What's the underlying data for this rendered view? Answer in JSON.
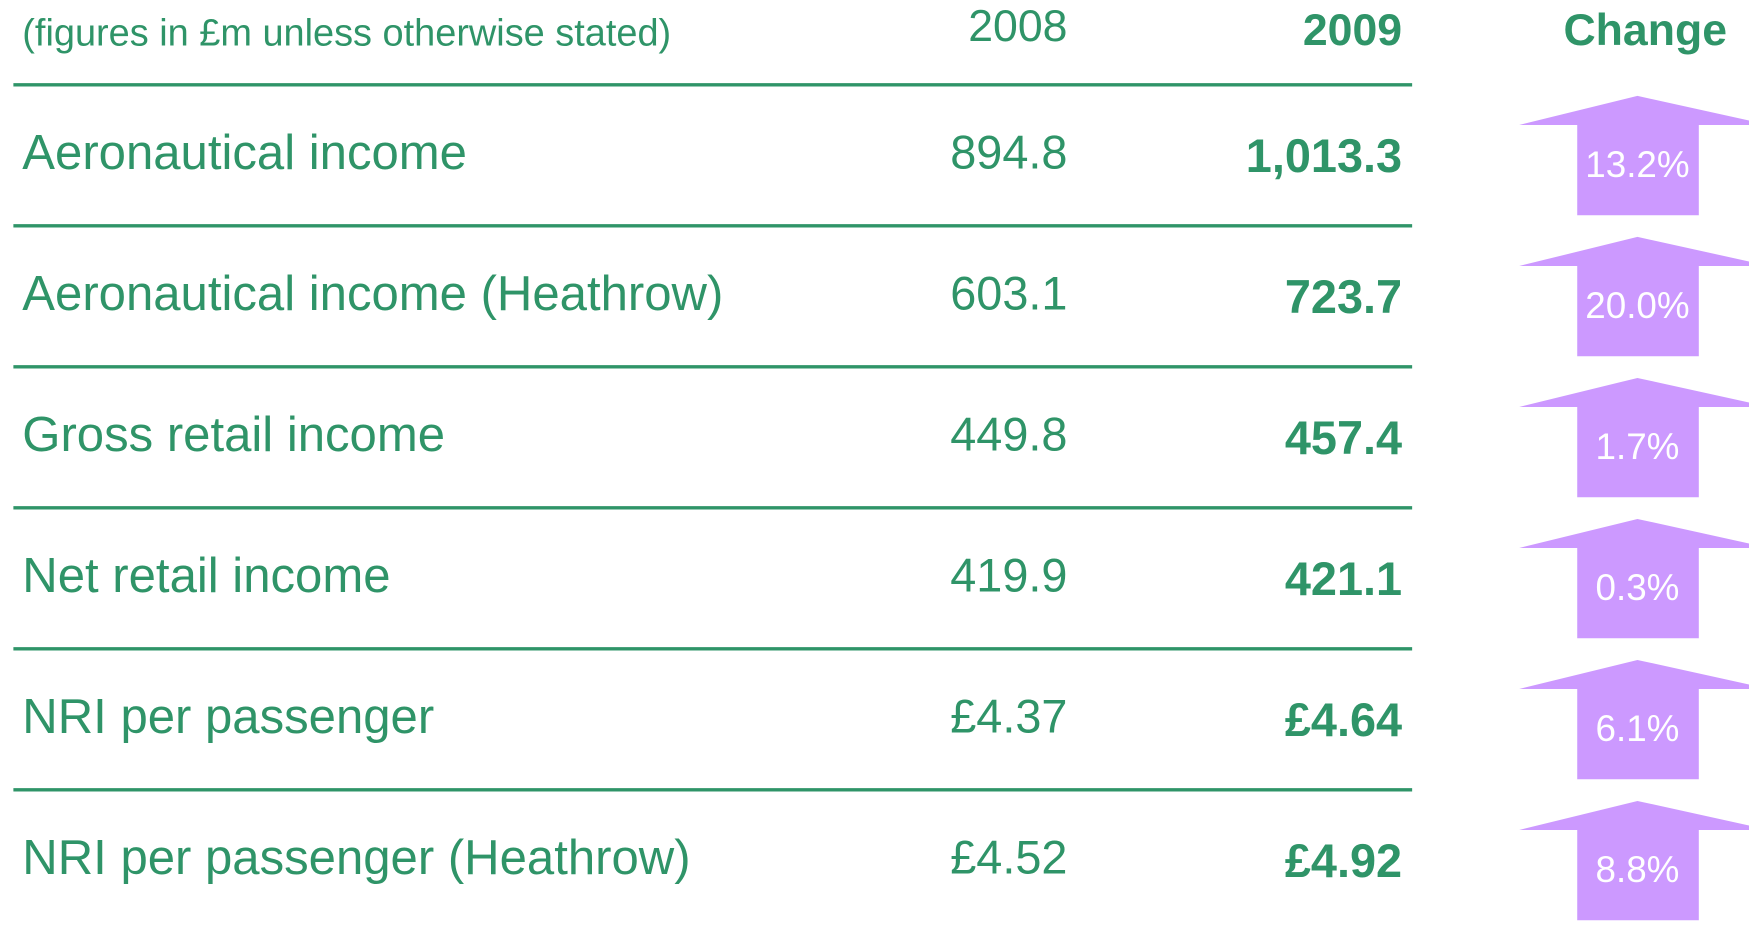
{
  "table": {
    "header": {
      "note": "(figures in £m unless otherwise stated)",
      "col1": "2008",
      "col2": "2009",
      "col3": "Change"
    },
    "rows": [
      {
        "label": "Aeronautical income",
        "y2008": "894.8",
        "y2009": "1,013.3",
        "change": "13.2%"
      },
      {
        "label": "Aeronautical income (Heathrow)",
        "y2008": "603.1",
        "y2009": "723.7",
        "change": "20.0%"
      },
      {
        "label": "Gross retail income",
        "y2008": "449.8",
        "y2009": "457.4",
        "change": "1.7%"
      },
      {
        "label": "Net retail income",
        "y2008": "419.9",
        "y2009": "421.1",
        "change": "0.3%"
      },
      {
        "label": "NRI per passenger",
        "y2008": "£4.37",
        "y2009": "£4.64",
        "change": "6.1%"
      },
      {
        "label": "NRI per passenger (Heathrow)",
        "y2008": "£4.52",
        "y2009": "£4.92",
        "change": "8.8%"
      }
    ]
  }
}
